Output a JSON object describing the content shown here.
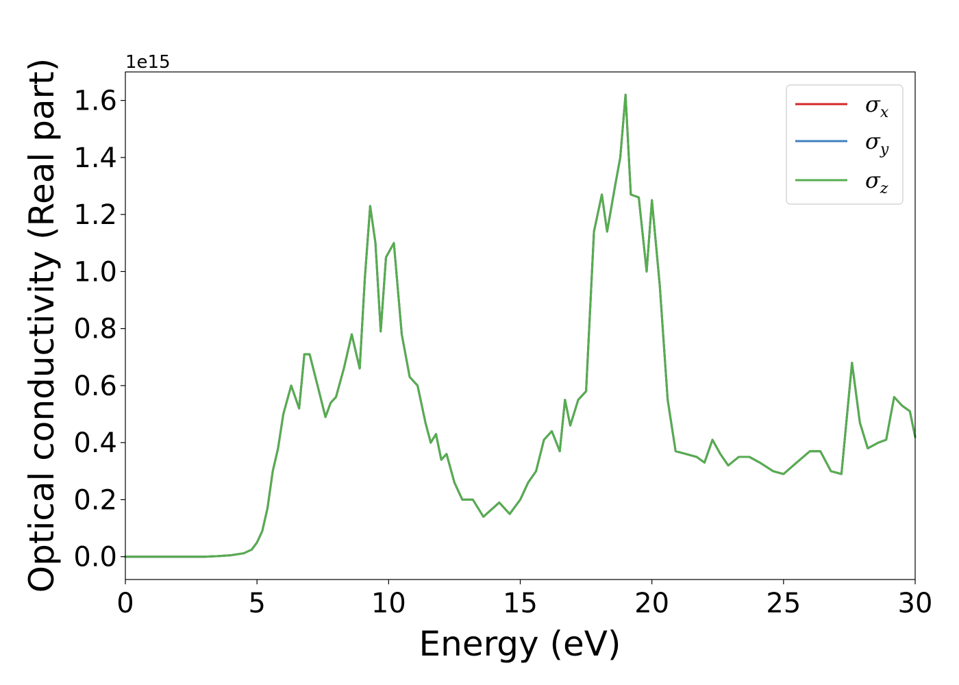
{
  "chart_data": {
    "type": "line",
    "xlabel": "Energy (eV)",
    "ylabel": "Optical conductivity (Real part)",
    "y_offset_label": "1e15",
    "xlim": [
      0,
      30
    ],
    "ylim": [
      -0.08,
      1.7
    ],
    "xticks": [
      0,
      5,
      10,
      15,
      20,
      25,
      30
    ],
    "xtick_labels": [
      "0",
      "5",
      "10",
      "15",
      "20",
      "25",
      "30"
    ],
    "yticks": [
      0.0,
      0.2,
      0.4,
      0.6,
      0.8,
      1.0,
      1.2,
      1.4,
      1.6
    ],
    "ytick_labels": [
      "0.0",
      "0.2",
      "0.4",
      "0.6",
      "0.8",
      "1.0",
      "1.2",
      "1.4",
      "1.6"
    ],
    "grid": false,
    "legend_position": "top-right",
    "x": [
      0,
      1,
      2,
      3,
      3.5,
      4,
      4.5,
      4.8,
      5,
      5.2,
      5.4,
      5.6,
      5.8,
      6,
      6.3,
      6.6,
      6.8,
      7.0,
      7.3,
      7.6,
      7.8,
      8.0,
      8.3,
      8.6,
      8.9,
      9.1,
      9.3,
      9.5,
      9.7,
      9.9,
      10.2,
      10.5,
      10.8,
      11.1,
      11.4,
      11.6,
      11.8,
      12.0,
      12.2,
      12.5,
      12.8,
      13.2,
      13.6,
      14.2,
      14.6,
      15.0,
      15.3,
      15.6,
      15.9,
      16.2,
      16.5,
      16.7,
      16.9,
      17.2,
      17.5,
      17.8,
      18.1,
      18.3,
      18.6,
      18.8,
      19.0,
      19.2,
      19.5,
      19.8,
      20.0,
      20.3,
      20.6,
      20.9,
      21.3,
      21.7,
      22.0,
      22.3,
      22.6,
      22.9,
      23.3,
      23.7,
      24.1,
      24.6,
      25.0,
      25.5,
      26.0,
      26.4,
      26.8,
      27.2,
      27.6,
      27.9,
      28.2,
      28.6,
      28.9,
      29.2,
      29.5,
      29.8,
      30.0
    ],
    "series": [
      {
        "name": "σx",
        "color": "#d62728",
        "values": [
          0.0,
          0.0,
          0.0,
          0.0,
          0.002,
          0.005,
          0.012,
          0.025,
          0.05,
          0.09,
          0.17,
          0.3,
          0.38,
          0.5,
          0.6,
          0.52,
          0.71,
          0.71,
          0.6,
          0.49,
          0.54,
          0.56,
          0.66,
          0.78,
          0.66,
          0.98,
          1.23,
          1.1,
          0.79,
          1.05,
          1.1,
          0.78,
          0.63,
          0.6,
          0.47,
          0.4,
          0.43,
          0.34,
          0.36,
          0.26,
          0.2,
          0.2,
          0.14,
          0.19,
          0.15,
          0.2,
          0.26,
          0.3,
          0.41,
          0.44,
          0.37,
          0.55,
          0.46,
          0.55,
          0.58,
          1.14,
          1.27,
          1.14,
          1.3,
          1.4,
          1.62,
          1.27,
          1.26,
          1.0,
          1.25,
          0.95,
          0.55,
          0.37,
          0.36,
          0.35,
          0.33,
          0.41,
          0.36,
          0.32,
          0.35,
          0.35,
          0.33,
          0.3,
          0.29,
          0.33,
          0.37,
          0.37,
          0.3,
          0.29,
          0.68,
          0.47,
          0.38,
          0.4,
          0.41,
          0.56,
          0.53,
          0.51,
          0.42
        ]
      },
      {
        "name": "σy",
        "color": "#3f7fbf",
        "values": [
          0.0,
          0.0,
          0.0,
          0.0,
          0.002,
          0.005,
          0.012,
          0.025,
          0.05,
          0.09,
          0.17,
          0.3,
          0.38,
          0.5,
          0.6,
          0.52,
          0.71,
          0.71,
          0.6,
          0.49,
          0.54,
          0.56,
          0.66,
          0.78,
          0.66,
          0.98,
          1.23,
          1.1,
          0.79,
          1.05,
          1.1,
          0.78,
          0.63,
          0.6,
          0.47,
          0.4,
          0.43,
          0.34,
          0.36,
          0.26,
          0.2,
          0.2,
          0.14,
          0.19,
          0.15,
          0.2,
          0.26,
          0.3,
          0.41,
          0.44,
          0.37,
          0.55,
          0.46,
          0.55,
          0.58,
          1.14,
          1.27,
          1.14,
          1.3,
          1.4,
          1.62,
          1.27,
          1.26,
          1.0,
          1.25,
          0.95,
          0.55,
          0.37,
          0.36,
          0.35,
          0.33,
          0.41,
          0.36,
          0.32,
          0.35,
          0.35,
          0.33,
          0.3,
          0.29,
          0.33,
          0.37,
          0.37,
          0.3,
          0.29,
          0.68,
          0.47,
          0.38,
          0.4,
          0.41,
          0.56,
          0.53,
          0.51,
          0.42
        ]
      },
      {
        "name": "σz",
        "color": "#56ad4f",
        "values": [
          0.0,
          0.0,
          0.0,
          0.0,
          0.002,
          0.005,
          0.012,
          0.025,
          0.05,
          0.09,
          0.17,
          0.3,
          0.38,
          0.5,
          0.6,
          0.52,
          0.71,
          0.71,
          0.6,
          0.49,
          0.54,
          0.56,
          0.66,
          0.78,
          0.66,
          0.98,
          1.23,
          1.1,
          0.79,
          1.05,
          1.1,
          0.78,
          0.63,
          0.6,
          0.47,
          0.4,
          0.43,
          0.34,
          0.36,
          0.26,
          0.2,
          0.2,
          0.14,
          0.19,
          0.15,
          0.2,
          0.26,
          0.3,
          0.41,
          0.44,
          0.37,
          0.55,
          0.46,
          0.55,
          0.58,
          1.14,
          1.27,
          1.14,
          1.3,
          1.4,
          1.62,
          1.27,
          1.26,
          1.0,
          1.25,
          0.95,
          0.55,
          0.37,
          0.36,
          0.35,
          0.33,
          0.41,
          0.36,
          0.32,
          0.35,
          0.35,
          0.33,
          0.3,
          0.29,
          0.33,
          0.37,
          0.37,
          0.3,
          0.29,
          0.68,
          0.47,
          0.38,
          0.4,
          0.41,
          0.56,
          0.53,
          0.51,
          0.42
        ]
      }
    ],
    "legend": [
      {
        "symbol": "σ",
        "sub": "x"
      },
      {
        "symbol": "σ",
        "sub": "y"
      },
      {
        "symbol": "σ",
        "sub": "z"
      }
    ]
  }
}
